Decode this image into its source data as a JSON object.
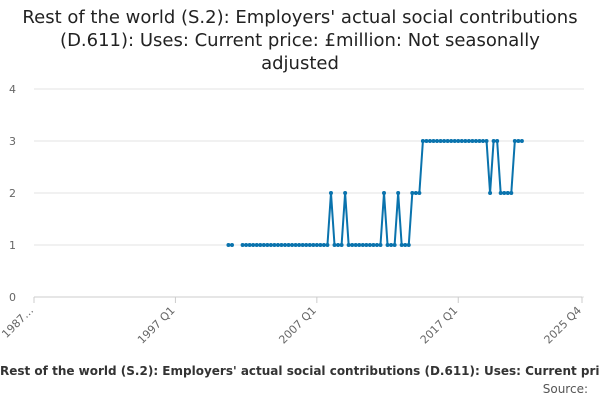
{
  "chart_data": {
    "type": "line",
    "title": "Rest of the world (S.2): Employers' actual social contributions (D.611): Uses: Current price: £million: Not seasonally adjusted",
    "legend_label": "Rest of the world (S.2): Employers' actual social contributions (D.611): Uses: Current price: £million: Not seasonally adjusted",
    "source_label": "Source:",
    "xlabel": "",
    "ylabel": "",
    "x_range": [
      "1987 Q1",
      "2025 Q4"
    ],
    "x_tick_labels": [
      "1987…",
      "1997 Q1",
      "2007 Q1",
      "2017 Q1",
      "2025 Q4"
    ],
    "x_tick_index": [
      0,
      40,
      80,
      120,
      155
    ],
    "ylim": [
      0,
      4
    ],
    "y_ticks": [
      0,
      1,
      2,
      3,
      4
    ],
    "grid": true,
    "series_color": "#0a73ad",
    "series": [
      {
        "name": "Rest of the world (S.2): Employers' actual social contributions (D.611)",
        "start_period": "2000 Q4",
        "values": [
          1,
          1,
          null,
          null,
          1,
          1,
          1,
          1,
          1,
          1,
          1,
          1,
          1,
          1,
          1,
          1,
          1,
          1,
          1,
          1,
          1,
          1,
          1,
          1,
          1,
          1,
          1,
          1,
          1,
          2,
          1,
          1,
          1,
          2,
          1,
          1,
          1,
          1,
          1,
          1,
          1,
          1,
          1,
          1,
          2,
          1,
          1,
          1,
          2,
          1,
          1,
          1,
          2,
          2,
          2,
          3,
          3,
          3,
          3,
          3,
          3,
          3,
          3,
          3,
          3,
          3,
          3,
          3,
          3,
          3,
          3,
          3,
          3,
          3,
          2,
          3,
          3,
          2,
          2,
          2,
          2,
          3,
          3,
          3
        ]
      }
    ]
  }
}
